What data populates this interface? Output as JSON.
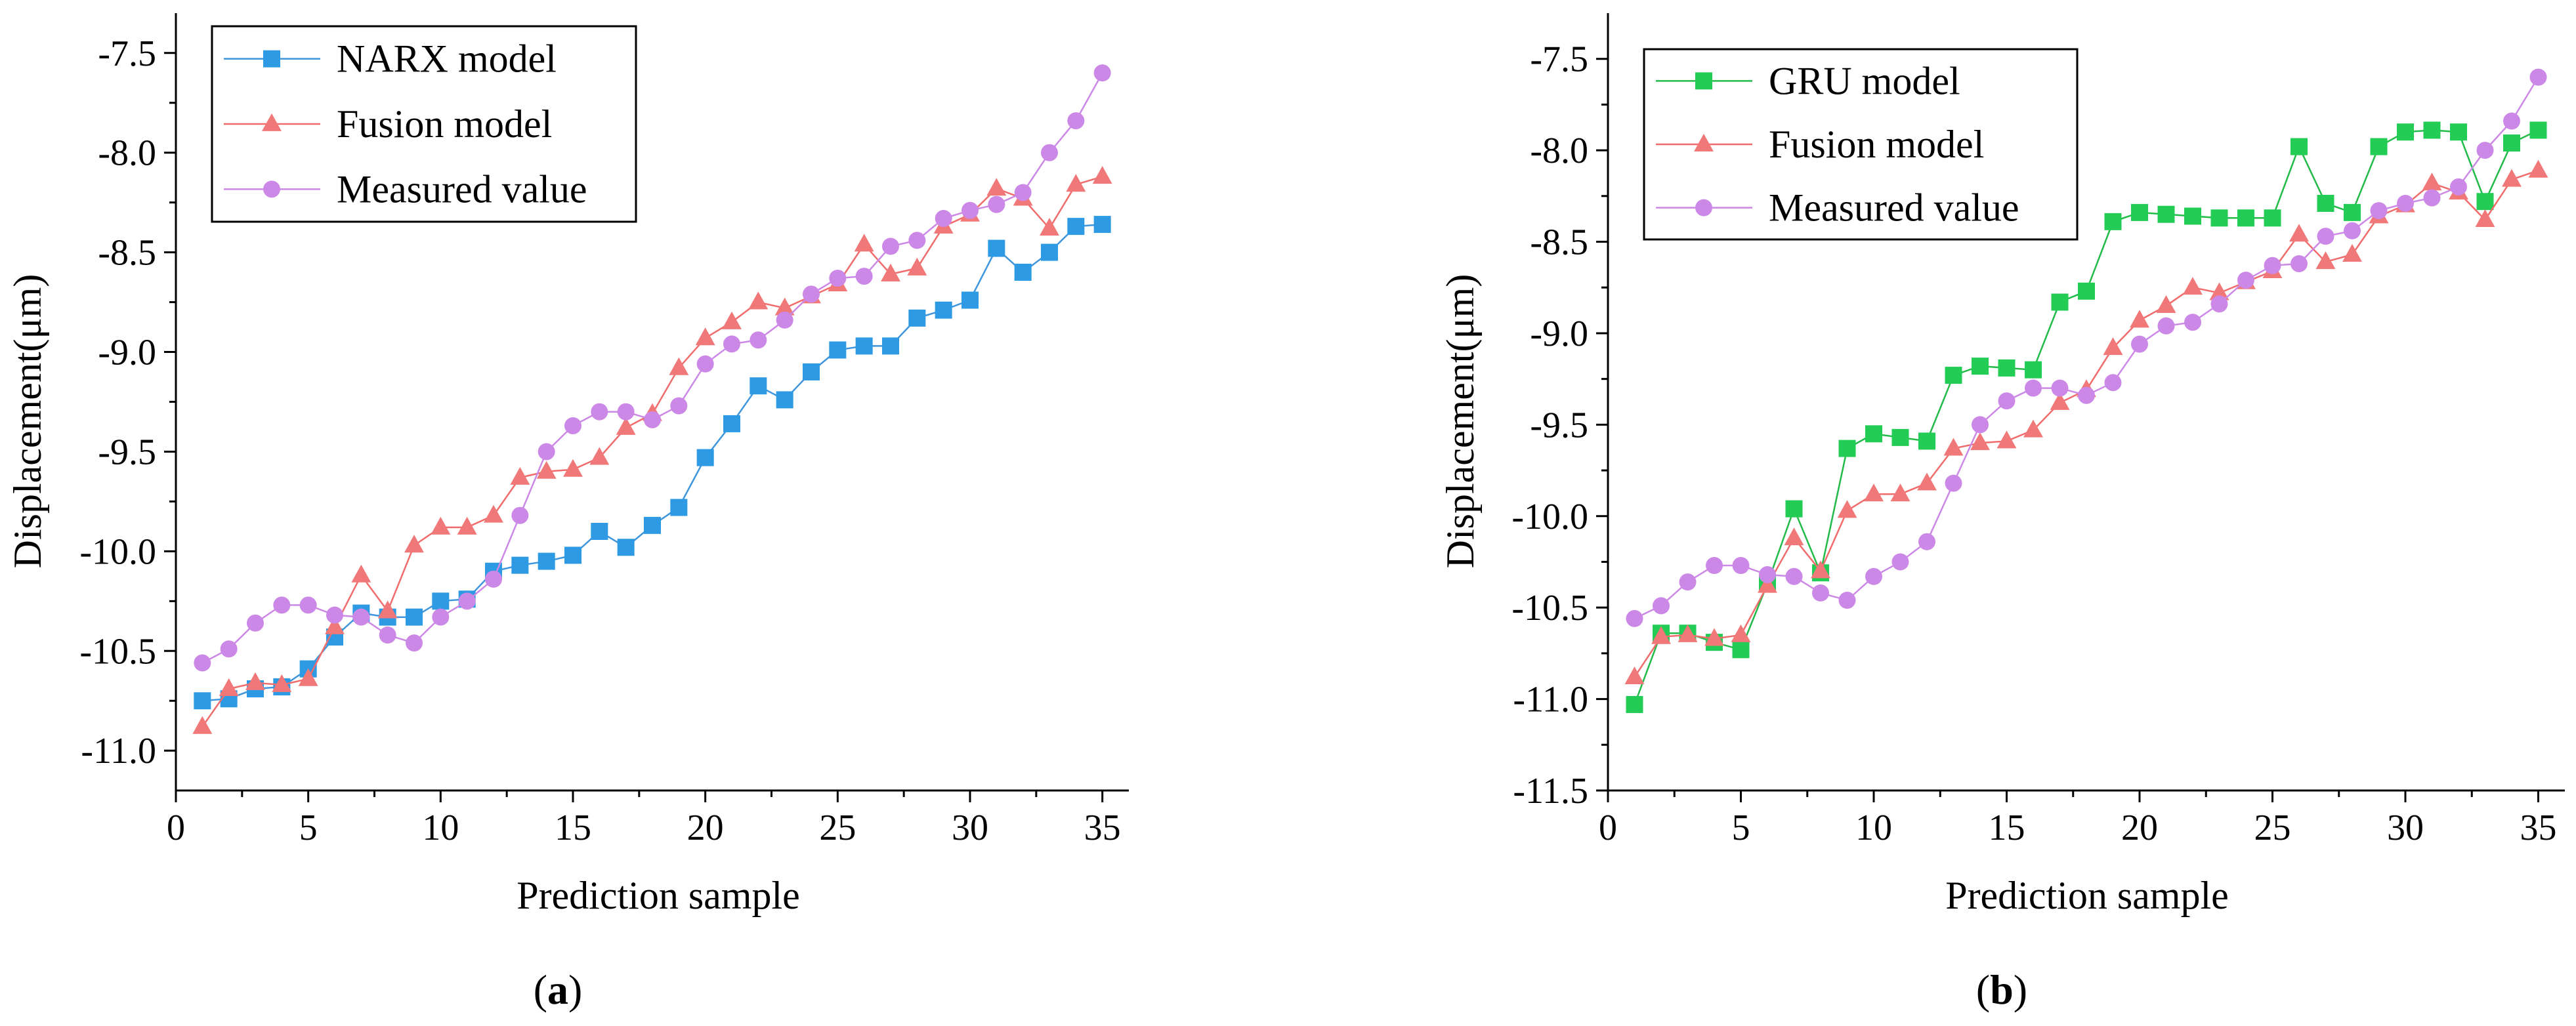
{
  "panels": [
    {
      "panel_label": "(a)",
      "panel_letter": "a"
    },
    {
      "panel_label": "(b)",
      "panel_letter": "b"
    }
  ],
  "chart_data": [
    {
      "type": "line",
      "title": "",
      "xlabel": "Prediction sample",
      "ylabel": "Displacement(μm)",
      "xlim": [
        0,
        36
      ],
      "ylim": [
        -11.2,
        -7.3
      ],
      "xticks": [
        0,
        5,
        10,
        15,
        20,
        25,
        30,
        35
      ],
      "yticks": [
        -11.0,
        -10.5,
        -10.0,
        -9.5,
        -9.0,
        -8.5,
        -8.0,
        -7.5
      ],
      "ytick_labels": [
        "-11.0",
        "-10.5",
        "-10.0",
        "-9.5",
        "-9.0",
        "-8.5",
        "-8.0",
        "-7.5"
      ],
      "legend_position": "top-left",
      "x": [
        1,
        2,
        3,
        4,
        5,
        6,
        7,
        8,
        9,
        10,
        11,
        12,
        13,
        14,
        15,
        16,
        17,
        18,
        19,
        20,
        21,
        22,
        23,
        24,
        25,
        26,
        27,
        28,
        29,
        30,
        31,
        32,
        33,
        34,
        35
      ],
      "series": [
        {
          "name": "NARX model",
          "marker": "square",
          "color": "#2e9ae4",
          "line_color": "#3f96dc",
          "values": [
            -10.75,
            -10.74,
            -10.69,
            -10.68,
            -10.59,
            -10.43,
            -10.31,
            -10.33,
            -10.33,
            -10.25,
            -10.24,
            -10.1,
            -10.07,
            -10.05,
            -10.02,
            -9.9,
            -9.98,
            -9.87,
            -9.78,
            -9.53,
            -9.36,
            -9.17,
            -9.24,
            -9.1,
            -8.99,
            -8.97,
            -8.97,
            -8.83,
            -8.79,
            -8.74,
            -8.48,
            -8.6,
            -8.5,
            -8.37,
            -8.36
          ]
        },
        {
          "name": "Fusion model",
          "marker": "triangle",
          "color": "#f07878",
          "line_color": "#f06c6c",
          "values": [
            -10.88,
            -10.69,
            -10.66,
            -10.67,
            -10.64,
            -10.38,
            -10.12,
            -10.3,
            -9.97,
            -9.88,
            -9.88,
            -9.82,
            -9.63,
            -9.6,
            -9.59,
            -9.53,
            -9.38,
            -9.31,
            -9.08,
            -8.93,
            -8.85,
            -8.75,
            -8.78,
            -8.72,
            -8.66,
            -8.46,
            -8.61,
            -8.58,
            -8.37,
            -8.31,
            -8.18,
            -8.23,
            -8.38,
            -8.16,
            -8.12
          ]
        },
        {
          "name": "Measured value",
          "marker": "circle",
          "color": "#cc88e6",
          "line_color": "#cc88e6",
          "values": [
            -10.56,
            -10.49,
            -10.36,
            -10.27,
            -10.27,
            -10.32,
            -10.33,
            -10.42,
            -10.46,
            -10.33,
            -10.25,
            -10.14,
            -9.82,
            -9.5,
            -9.37,
            -9.3,
            -9.3,
            -9.34,
            -9.27,
            -9.06,
            -8.96,
            -8.94,
            -8.84,
            -8.71,
            -8.63,
            -8.62,
            -8.47,
            -8.44,
            -8.33,
            -8.29,
            -8.26,
            -8.2,
            -8.0,
            -7.84,
            -7.6
          ]
        }
      ]
    },
    {
      "type": "line",
      "title": "",
      "xlabel": "Prediction sample",
      "ylabel": "Displacement(μm)",
      "xlim": [
        0,
        36
      ],
      "ylim": [
        -11.5,
        -7.25
      ],
      "xticks": [
        0,
        5,
        10,
        15,
        20,
        25,
        30,
        35
      ],
      "yticks": [
        -11.5,
        -11.0,
        -10.5,
        -10.0,
        -9.5,
        -9.0,
        -8.5,
        -8.0,
        -7.5
      ],
      "ytick_labels": [
        "-11.5",
        "-11.0",
        "-10.5",
        "-10.0",
        "-9.5",
        "-9.0",
        "-8.5",
        "-8.0",
        "-7.5"
      ],
      "legend_position": "top-left",
      "x": [
        1,
        2,
        3,
        4,
        5,
        6,
        7,
        8,
        9,
        10,
        11,
        12,
        13,
        14,
        15,
        16,
        17,
        18,
        19,
        20,
        21,
        22,
        23,
        24,
        25,
        26,
        27,
        28,
        29,
        30,
        31,
        32,
        33,
        34,
        35
      ],
      "series": [
        {
          "name": "GRU model",
          "marker": "square",
          "color": "#22cc55",
          "line_color": "#22bb4a",
          "values": [
            -11.03,
            -10.64,
            -10.64,
            -10.69,
            -10.73,
            -10.37,
            -9.96,
            -10.31,
            -9.63,
            -9.55,
            -9.57,
            -9.59,
            -9.23,
            -9.18,
            -9.19,
            -9.2,
            -8.83,
            -8.77,
            -8.39,
            -8.34,
            -8.35,
            -8.36,
            -8.37,
            -8.37,
            -8.37,
            -7.98,
            -8.29,
            -8.34,
            -7.98,
            -7.9,
            -7.89,
            -7.9,
            -8.28,
            -7.96,
            -7.89
          ]
        },
        {
          "name": "Fusion model",
          "marker": "triangle",
          "color": "#f07878",
          "line_color": "#f06c6c",
          "values": [
            -10.88,
            -10.66,
            -10.65,
            -10.67,
            -10.65,
            -10.38,
            -10.12,
            -10.3,
            -9.97,
            -9.88,
            -9.88,
            -9.82,
            -9.63,
            -9.6,
            -9.59,
            -9.53,
            -9.38,
            -9.31,
            -9.08,
            -8.93,
            -8.85,
            -8.75,
            -8.78,
            -8.72,
            -8.66,
            -8.46,
            -8.61,
            -8.57,
            -8.36,
            -8.3,
            -8.18,
            -8.23,
            -8.38,
            -8.16,
            -8.11
          ]
        },
        {
          "name": "Measured value",
          "marker": "circle",
          "color": "#cc88e6",
          "line_color": "#cc88e6",
          "values": [
            -10.56,
            -10.49,
            -10.36,
            -10.27,
            -10.27,
            -10.32,
            -10.33,
            -10.42,
            -10.46,
            -10.33,
            -10.25,
            -10.14,
            -9.82,
            -9.5,
            -9.37,
            -9.3,
            -9.3,
            -9.34,
            -9.27,
            -9.06,
            -8.96,
            -8.94,
            -8.84,
            -8.71,
            -8.63,
            -8.62,
            -8.47,
            -8.44,
            -8.33,
            -8.29,
            -8.26,
            -8.2,
            -8.0,
            -7.84,
            -7.6
          ]
        }
      ]
    }
  ]
}
